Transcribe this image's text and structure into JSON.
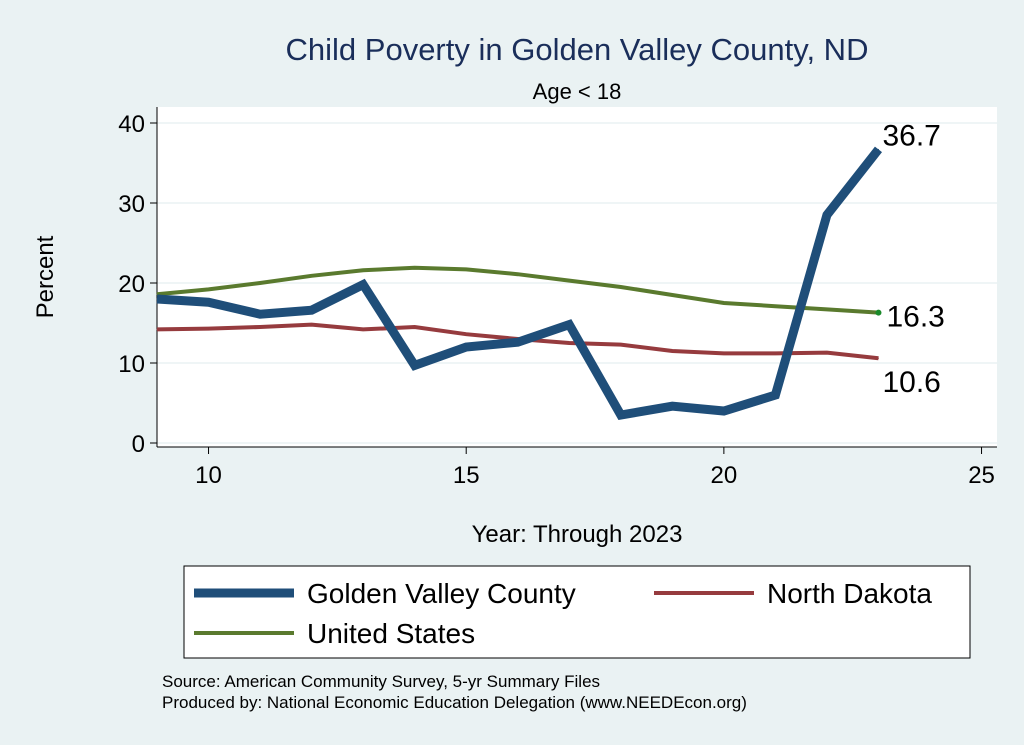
{
  "chart_data": {
    "type": "line",
    "title": "Child Poverty in Golden Valley County, ND",
    "subtitle": "Age < 18",
    "xlabel": "Year: Through 2023",
    "ylabel": "Percent",
    "xlim": [
      9,
      25.3
    ],
    "ylim": [
      -0.5,
      42
    ],
    "xticks": [
      10,
      15,
      20,
      25
    ],
    "yticks": [
      0,
      10,
      20,
      30,
      40
    ],
    "grid": true,
    "series": [
      {
        "name": "Golden Valley County",
        "color": "#1f4e79",
        "x": [
          9,
          10,
          11,
          12,
          13,
          14,
          15,
          16,
          17,
          18,
          19,
          20,
          21,
          22,
          23
        ],
        "values": [
          18.0,
          17.6,
          16.1,
          16.6,
          19.8,
          9.7,
          12.0,
          12.6,
          14.8,
          3.5,
          4.6,
          4.0,
          6.0,
          28.5,
          36.7
        ],
        "end_label": "36.7"
      },
      {
        "name": "North Dakota",
        "color": "#963b3e",
        "x": [
          9,
          10,
          11,
          12,
          13,
          14,
          15,
          16,
          17,
          18,
          19,
          20,
          21,
          22,
          23
        ],
        "values": [
          14.2,
          14.3,
          14.5,
          14.8,
          14.2,
          14.5,
          13.6,
          13.0,
          12.5,
          12.3,
          11.5,
          11.2,
          11.2,
          11.3,
          10.6
        ],
        "end_label": "10.6"
      },
      {
        "name": "United States",
        "color": "#5a7a2e",
        "x": [
          9,
          10,
          11,
          12,
          13,
          14,
          15,
          16,
          17,
          18,
          19,
          20,
          21,
          22,
          23
        ],
        "values": [
          18.6,
          19.2,
          20.0,
          20.9,
          21.6,
          21.9,
          21.7,
          21.1,
          20.3,
          19.5,
          18.5,
          17.5,
          17.1,
          16.7,
          16.3
        ],
        "end_label": "16.3"
      }
    ],
    "legend": {
      "position": "bottom",
      "items": [
        "Golden Valley County",
        "North Dakota",
        "United States"
      ]
    },
    "notes": [
      "Source: American Community Survey, 5-yr Summary Files",
      "Produced by: National Economic Education Delegation (www.NEEDEcon.org)"
    ]
  }
}
